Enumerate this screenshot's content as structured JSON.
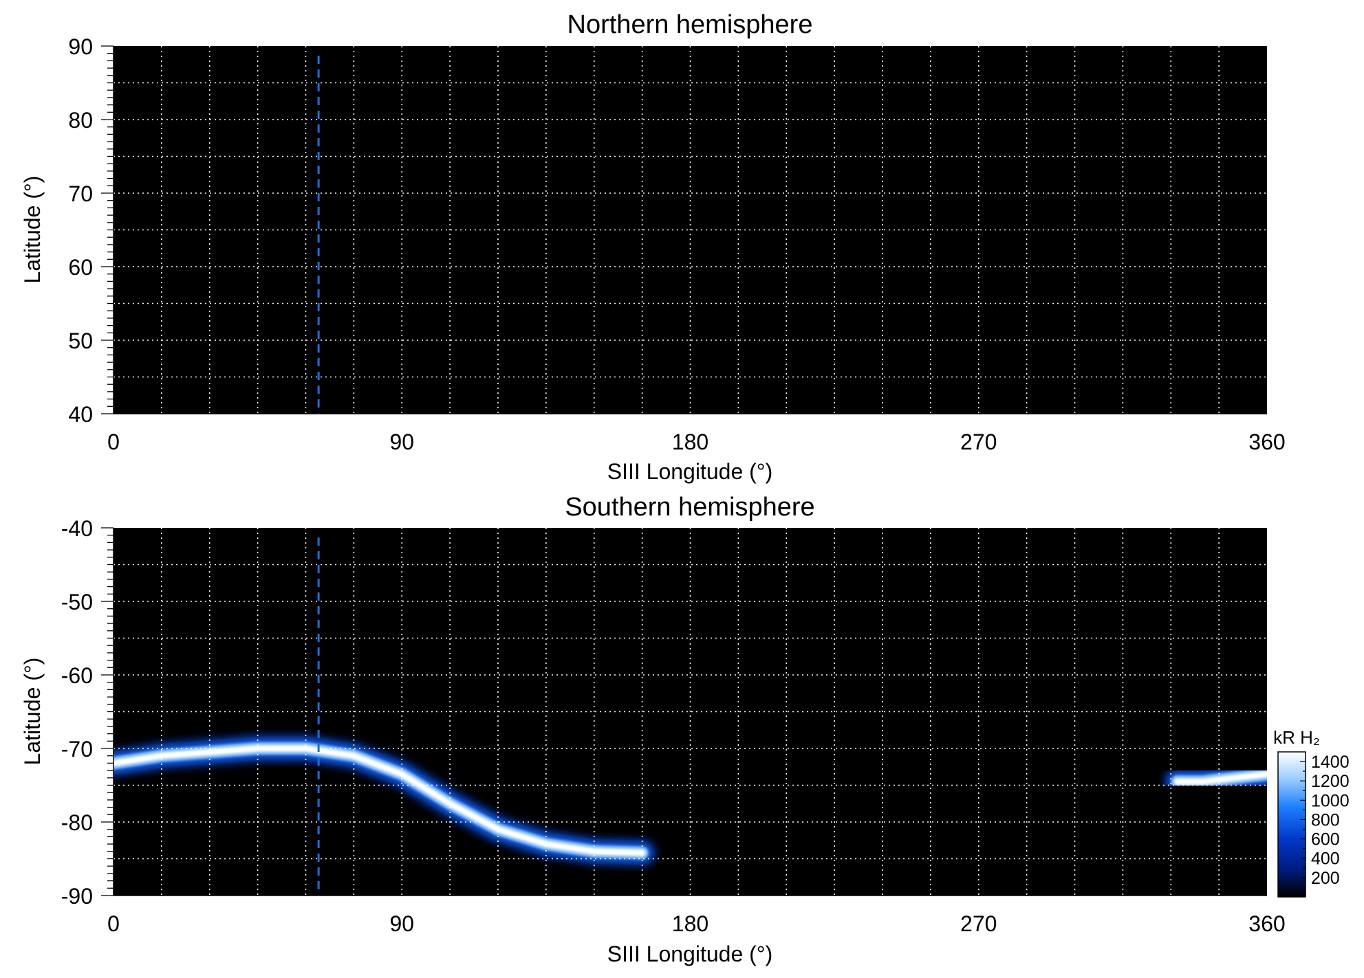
{
  "chart_data": [
    {
      "type": "heatmap",
      "title": "Northern hemisphere",
      "xlabel": "SIII Longitude (°)",
      "ylabel": "Latitude (°)",
      "xlim": [
        0,
        360
      ],
      "ylim": [
        40,
        90
      ],
      "xticks": [
        "0",
        "90",
        "180",
        "270",
        "360"
      ],
      "yticks": [
        "90",
        "80",
        "70",
        "60",
        "50",
        "40"
      ],
      "grid": true,
      "grid_spacing": {
        "longitude_deg": 15,
        "latitude_deg": 5
      },
      "reference_line": {
        "longitude_deg": 64,
        "style": "dashed",
        "color": "#1f6fd6"
      },
      "emission": []
    },
    {
      "type": "heatmap",
      "title": "Southern hemisphere",
      "xlabel": "SIII Longitude (°)",
      "ylabel": "Latitude (°)",
      "xlim": [
        0,
        360
      ],
      "ylim": [
        -90,
        -40
      ],
      "xticks": [
        "0",
        "90",
        "180",
        "270",
        "360"
      ],
      "yticks": [
        "-40",
        "-50",
        "-60",
        "-70",
        "-80",
        "-90"
      ],
      "grid": true,
      "grid_spacing": {
        "longitude_deg": 15,
        "latitude_deg": 5
      },
      "reference_line": {
        "longitude_deg": 64,
        "style": "dashed",
        "color": "#1f6fd6"
      },
      "emission": [
        {
          "lon": [
            0,
            15,
            30,
            45,
            60,
            75,
            90,
            105,
            120,
            135,
            150,
            165
          ],
          "lat": [
            -72,
            -71,
            -70.5,
            -70,
            -70,
            -71,
            -73.5,
            -77.5,
            -81,
            -83,
            -84,
            -84.2
          ],
          "brightness_kR": [
            1200,
            1300,
            1200,
            1000,
            900,
            850,
            900,
            1000,
            1100,
            1300,
            1400,
            1000
          ]
        },
        {
          "lon": [
            332,
            340,
            350,
            360
          ],
          "lat": [
            -74.5,
            -74.5,
            -74,
            -73.5
          ],
          "brightness_kR": [
            1200,
            1400,
            1400,
            1300
          ]
        }
      ],
      "colorbar": {
        "label": "kR H₂",
        "ticks": [
          "1400",
          "1200",
          "1000",
          "800",
          "600",
          "400",
          "200"
        ],
        "range": [
          0,
          1500
        ],
        "colors": [
          "#000000",
          "#001a7a",
          "#0038c8",
          "#1e7fff",
          "#9fd0ff",
          "#ffffff"
        ]
      }
    }
  ]
}
